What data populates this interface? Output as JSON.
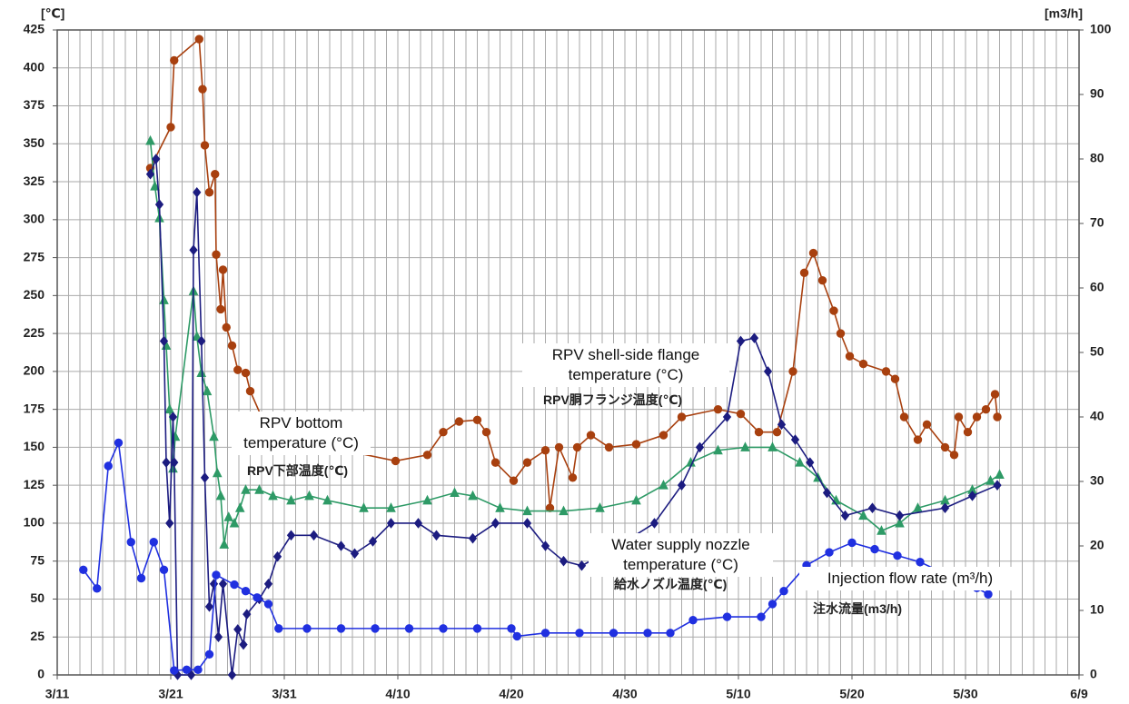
{
  "chart_data": {
    "type": "line",
    "y_unit": "[℃]",
    "y2_unit": "[m3/h]",
    "xlim": [
      0,
      90
    ],
    "xticks": [
      {
        "value": 0,
        "label": "3/11"
      },
      {
        "value": 10,
        "label": "3/21"
      },
      {
        "value": 20,
        "label": "3/31"
      },
      {
        "value": 30,
        "label": "4/10"
      },
      {
        "value": 40,
        "label": "4/20"
      },
      {
        "value": 50,
        "label": "4/30"
      },
      {
        "value": 60,
        "label": "5/10"
      },
      {
        "value": 70,
        "label": "5/20"
      },
      {
        "value": 80,
        "label": "5/30"
      },
      {
        "value": 90,
        "label": "6/9"
      }
    ],
    "xgrid": [
      0,
      1,
      2,
      3,
      4,
      5,
      6,
      7,
      8,
      9,
      10,
      11,
      12,
      13,
      14,
      15,
      16,
      17,
      18,
      19,
      20,
      21,
      22,
      23,
      24,
      25,
      26,
      27,
      28,
      29,
      30,
      31,
      32,
      33,
      34,
      35,
      36,
      37,
      38,
      39,
      40,
      41,
      42,
      43,
      44,
      45,
      46,
      47,
      48,
      49,
      50,
      51,
      52,
      53,
      54,
      55,
      56,
      57,
      58,
      59,
      60,
      61,
      62,
      63,
      64,
      65,
      66,
      67,
      68,
      69,
      70,
      71,
      72,
      73,
      74,
      75,
      76,
      77,
      78,
      79,
      80,
      81,
      82,
      83,
      84,
      85,
      86,
      87,
      88,
      89,
      90
    ],
    "ylim": [
      0,
      425
    ],
    "yticks": [
      0,
      25,
      50,
      75,
      100,
      125,
      150,
      175,
      200,
      225,
      250,
      275,
      300,
      325,
      350,
      375,
      400,
      425
    ],
    "y2lim": [
      0,
      100
    ],
    "y2ticks": [
      0,
      10,
      20,
      30,
      40,
      50,
      60,
      70,
      80,
      90,
      100
    ],
    "grid": true,
    "series": [
      {
        "name": "RPV shell-side flange temperature (°C)",
        "name_ja": "RPV胴フランジ温度(℃)",
        "color": "#a8400f",
        "marker": "circle",
        "x": [
          8.2,
          10,
          10.3,
          12.5,
          12.8,
          13,
          13.4,
          13.9,
          14,
          14.4,
          14.6,
          14.9,
          15.4,
          15.9,
          16.6,
          17,
          18,
          24,
          29.8,
          32.6,
          34,
          35.4,
          37,
          37.8,
          38.6,
          40.2,
          41.4,
          43,
          43.4,
          44.2,
          45.4,
          45.8,
          47,
          48.6,
          51,
          53.4,
          55,
          58.2,
          60.2,
          61.8,
          63.4,
          64.8,
          65.8,
          66.6,
          67.4,
          68.4,
          69,
          69.8,
          71,
          73,
          73.8,
          74.6,
          75.8,
          76.6,
          78.2,
          79,
          79.4,
          80.2,
          81,
          81.8,
          82.6,
          82.8
        ],
        "values": [
          334,
          361,
          405,
          419,
          386,
          349,
          318,
          330,
          277,
          241,
          267,
          229,
          217,
          201,
          199,
          187,
          170,
          150,
          141,
          145,
          160,
          167,
          168,
          160,
          140,
          128,
          140,
          148,
          110,
          150,
          130,
          150,
          158,
          150,
          152,
          158,
          170,
          175,
          172,
          160,
          160,
          200,
          265,
          278,
          260,
          240,
          225,
          210,
          205,
          200,
          195,
          170,
          155,
          165,
          150,
          145,
          170,
          160,
          170,
          175,
          185,
          170
        ]
      },
      {
        "name": "RPV bottom temperature (°C)",
        "name_ja": "RPV下部温度(℃)",
        "color": "#2e9a66",
        "marker": "triangle",
        "x": [
          8.2,
          8.6,
          9,
          9.4,
          9.6,
          9.9,
          10.2,
          10.4,
          12,
          12.3,
          12.7,
          13.2,
          13.8,
          14.1,
          14.4,
          14.7,
          15.1,
          15.6,
          16.1,
          16.6,
          17.8,
          19,
          20.6,
          22.2,
          23.8,
          27,
          29.4,
          32.6,
          35,
          36.6,
          39,
          41.4,
          44.6,
          47.8,
          51,
          53.4,
          55.8,
          58.2,
          60.6,
          63,
          65.4,
          67,
          68.6,
          71,
          72.6,
          74.2,
          75.8,
          78.2,
          80.6,
          82.2,
          83
        ],
        "values": [
          352,
          322,
          301,
          247,
          217,
          175,
          136,
          157,
          253,
          223,
          199,
          187,
          157,
          133,
          118,
          86,
          104,
          100,
          110,
          122,
          122,
          118,
          115,
          118,
          115,
          110,
          110,
          115,
          120,
          118,
          110,
          108,
          108,
          110,
          115,
          125,
          140,
          148,
          150,
          150,
          140,
          130,
          115,
          105,
          95,
          100,
          110,
          115,
          122,
          128,
          132
        ]
      },
      {
        "name": "Water supply nozzle temperature (°C)",
        "name_ja": "給水ノズル温度(℃)",
        "color": "#1c1c80",
        "marker": "diamond",
        "x": [
          8.2,
          8.7,
          9,
          9.4,
          9.6,
          9.9,
          10.2,
          10.3,
          10.6,
          11.8,
          12,
          12.3,
          12.7,
          13,
          13.4,
          13.8,
          14.2,
          14.6,
          15.4,
          15.9,
          16.4,
          16.7,
          17.8,
          18.6,
          19.4,
          20.6,
          22.6,
          25,
          26.2,
          27.8,
          29.4,
          31.8,
          33.4,
          36.6,
          38.6,
          41.4,
          43,
          44.6,
          46.2,
          49.4,
          52.6,
          55,
          56.6,
          59,
          60.2,
          61.4,
          62.6,
          63.8,
          65,
          66.3,
          67.8,
          69.4,
          71.8,
          74.2,
          78.2,
          80.6,
          82.8
        ],
        "values": [
          330,
          340,
          310,
          220,
          140,
          100,
          170,
          140,
          0,
          0,
          280,
          318,
          220,
          130,
          45,
          60,
          25,
          60,
          0,
          30,
          20,
          40,
          50,
          60,
          78,
          92,
          92,
          85,
          80,
          88,
          100,
          100,
          92,
          90,
          100,
          100,
          85,
          75,
          72,
          85,
          100,
          125,
          150,
          170,
          220,
          222,
          200,
          165,
          155,
          140,
          120,
          105,
          110,
          105,
          110,
          118,
          125
        ]
      },
      {
        "name": "Injection flow rate (m³/h)",
        "name_ja": "注水流量(m3/h)",
        "color": "#2030e0",
        "marker": "circle",
        "axis": "y2",
        "x": [
          2.3,
          3.5,
          4.5,
          5.4,
          6.5,
          7.4,
          8.5,
          9.4,
          10.3,
          11.4,
          12.4,
          13.4,
          14,
          15.6,
          16.6,
          17.6,
          18.6,
          19.5,
          22,
          25,
          28,
          31,
          34,
          37,
          40,
          40.5,
          43,
          46,
          49,
          52,
          54,
          56,
          59,
          62,
          63,
          64,
          66,
          68,
          70,
          72,
          74,
          76,
          79,
          81,
          82
        ],
        "values": [
          16.3,
          13.4,
          32.4,
          36,
          20.6,
          15,
          20.6,
          16.3,
          0.7,
          0.8,
          0.8,
          3.2,
          15.5,
          14,
          13,
          12,
          11,
          7.2,
          7.2,
          7.2,
          7.2,
          7.2,
          7.2,
          7.2,
          7.2,
          6,
          6.5,
          6.5,
          6.5,
          6.5,
          6.5,
          8.5,
          9,
          9,
          11,
          13,
          17,
          19,
          20.5,
          19.5,
          18.5,
          17.5,
          15,
          13.5,
          12.5
        ]
      }
    ]
  }
}
